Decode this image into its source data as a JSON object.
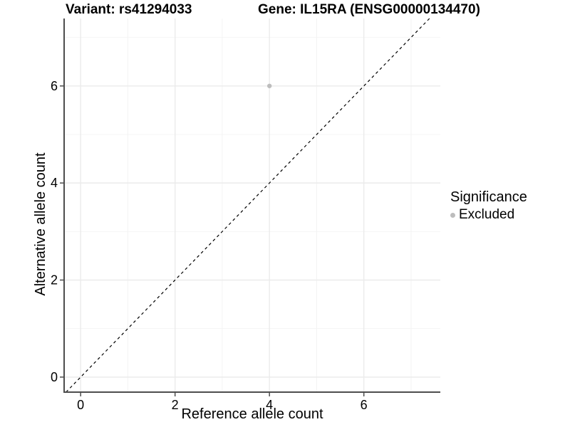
{
  "titles": {
    "variant": "Variant: rs41294033",
    "gene": "Gene: IL15RA (ENSG00000134470)"
  },
  "legend": {
    "title": "Significance",
    "items": [
      {
        "label": "Excluded",
        "color": "#bdbdbd"
      }
    ]
  },
  "colors": {
    "background": "#ffffff",
    "axis_line": "#4d4d4d",
    "grid_major": "#ebebeb",
    "grid_minor": "#f4f4f4",
    "tick": "#4d4d4d",
    "point": "#bdbdbd",
    "reference_line": "#000000",
    "text": "#000000"
  },
  "chart_data": {
    "type": "scatter",
    "title": "",
    "xlabel": "Reference allele count",
    "ylabel": "Alternative allele count",
    "xlim": [
      -0.35,
      7.62
    ],
    "ylim": [
      -0.31,
      7.39
    ],
    "x_ticks": [
      0,
      2,
      4,
      6
    ],
    "y_ticks": [
      0,
      2,
      4,
      6
    ],
    "x_minor_gridlines": [
      1,
      3,
      5,
      7
    ],
    "y_minor_gridlines": [
      1,
      3,
      5,
      7
    ],
    "grid": true,
    "legend_position": "right",
    "reference_line": {
      "type": "abline",
      "slope": 1,
      "intercept": 0,
      "style": "dashed"
    },
    "series": [
      {
        "name": "Excluded",
        "color": "#bdbdbd",
        "points": [
          {
            "x": 4,
            "y": 6
          }
        ]
      }
    ]
  }
}
